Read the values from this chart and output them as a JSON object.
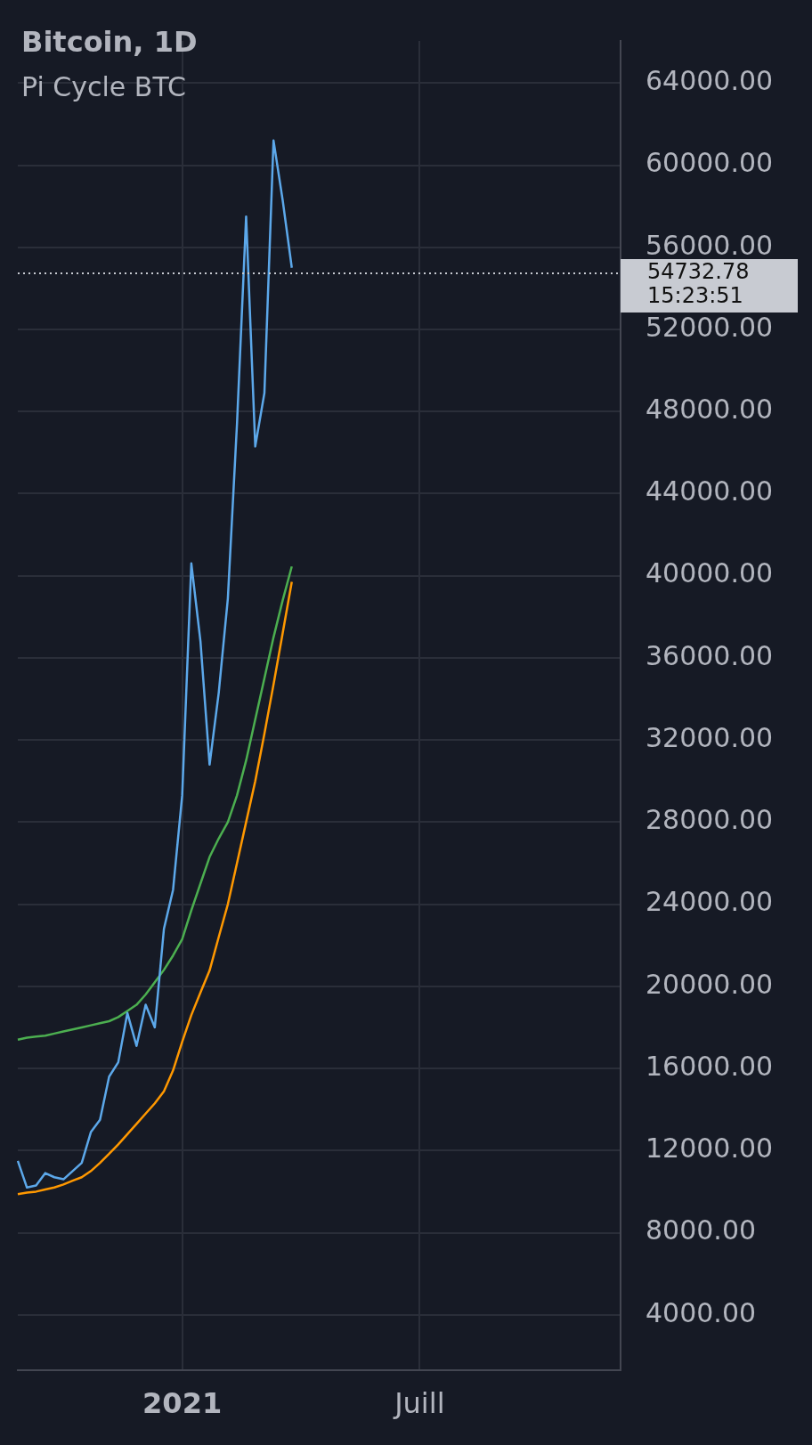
{
  "chart_data": {
    "type": "line",
    "title": "Bitcoin, 1D",
    "subtitle": "Pi Cycle BTC",
    "categories": [
      null,
      null,
      null,
      null,
      null,
      null,
      null,
      null,
      null,
      null,
      null,
      null,
      null,
      null,
      null,
      null,
      null,
      null,
      "2021",
      null,
      null,
      null,
      null,
      null,
      null,
      null,
      null,
      null,
      null,
      null,
      null,
      null,
      null,
      null,
      null,
      null,
      null,
      null,
      null,
      null,
      null,
      null,
      null,
      null,
      "Juill",
      null,
      null,
      null,
      null,
      null,
      null,
      null,
      null,
      null,
      null,
      null,
      null,
      null,
      null,
      null,
      null,
      null,
      null,
      null,
      null,
      null,
      null
    ],
    "series": [
      {
        "color": "#5ca8ea",
        "values": [
          11500,
          10200,
          10300,
          10900,
          10700,
          10600,
          11000,
          11400,
          12900,
          13500,
          15600,
          16300,
          18700,
          17100,
          19100,
          18000,
          22800,
          24700,
          29300,
          40600,
          36800,
          30800,
          34300,
          38900,
          47400,
          57500,
          46300,
          48900,
          61200,
          58300,
          55000,
          null,
          null,
          null,
          null,
          null,
          null,
          null,
          null,
          null,
          null,
          null,
          null,
          null,
          null,
          null,
          null,
          null,
          null,
          null,
          null,
          null,
          null,
          null,
          null,
          null,
          null,
          null,
          null,
          null,
          null,
          null,
          null,
          null,
          null,
          null,
          null
        ]
      },
      {
        "color": "#4caf50",
        "values": [
          17400,
          17500,
          17550,
          17600,
          17700,
          17800,
          17900,
          18000,
          18100,
          18200,
          18300,
          18500,
          18800,
          19100,
          19600,
          20200,
          20800,
          21500,
          22300,
          23700,
          25000,
          26300,
          27200,
          28000,
          29300,
          31000,
          33000,
          35000,
          37000,
          38800,
          40450,
          null,
          null,
          null,
          null,
          null,
          null,
          null,
          null,
          null,
          null,
          null,
          null,
          null,
          null,
          null,
          null,
          null,
          null,
          null,
          null,
          null,
          null,
          null,
          null,
          null,
          null,
          null,
          null,
          null,
          null,
          null,
          null,
          null,
          null,
          null,
          null
        ]
      },
      {
        "color": "#ff9800",
        "values": [
          9880,
          9950,
          10000,
          10100,
          10200,
          10350,
          10530,
          10700,
          11000,
          11400,
          11840,
          12300,
          12800,
          13300,
          13800,
          14300,
          14890,
          15900,
          17300,
          18600,
          19700,
          20770,
          22400,
          24000,
          26000,
          28000,
          30000,
          32300,
          34700,
          37200,
          39700,
          null,
          null,
          null,
          null,
          null,
          null,
          null,
          null,
          null,
          null,
          null,
          null,
          null,
          null,
          null,
          null,
          null,
          null,
          null,
          null,
          null,
          null,
          null,
          null,
          null,
          null,
          null,
          null,
          null,
          null,
          null,
          null,
          null,
          null,
          null,
          null
        ]
      }
    ],
    "ylim": [
      1300,
      66050
    ],
    "yticks": [
      {
        "value": 4000,
        "label": "4000.00"
      },
      {
        "value": 8000,
        "label": "8000.00"
      },
      {
        "value": 12000,
        "label": "12000.00"
      },
      {
        "value": 16000,
        "label": "16000.00"
      },
      {
        "value": 20000,
        "label": "20000.00"
      },
      {
        "value": 24000,
        "label": "24000.00"
      },
      {
        "value": 28000,
        "label": "28000.00"
      },
      {
        "value": 32000,
        "label": "32000.00"
      },
      {
        "value": 36000,
        "label": "36000.00"
      },
      {
        "value": 40000,
        "label": "40000.00"
      },
      {
        "value": 44000,
        "label": "44000.00"
      },
      {
        "value": 48000,
        "label": "48000.00"
      },
      {
        "value": 52000,
        "label": "52000.00"
      },
      {
        "value": 56000,
        "label": "56000.00"
      },
      {
        "value": 60000,
        "label": "60000.00"
      },
      {
        "value": 64000,
        "label": "64000.00"
      }
    ],
    "ref_lines": [
      {
        "axis": "y",
        "value": 54732.78,
        "label": "54732.78",
        "line_style": "dotted",
        "color": "#c8cbd2"
      }
    ],
    "annotations": [
      "15:23:51"
    ],
    "grid": true,
    "marker": "none",
    "line_style": "solid"
  }
}
